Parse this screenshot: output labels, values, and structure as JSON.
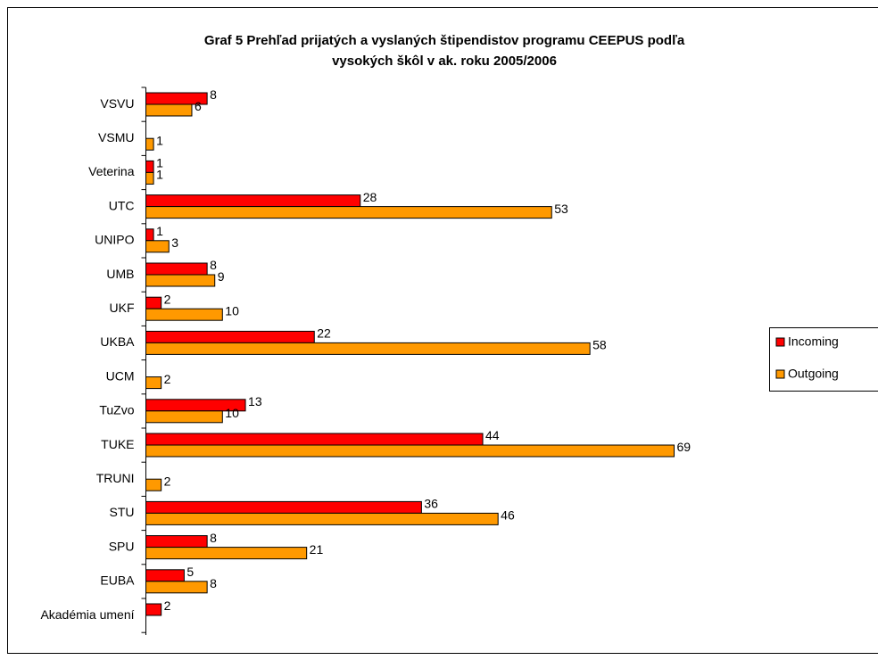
{
  "chart_data": {
    "type": "hbar",
    "title": [
      "Graf 5 Prehľad prijatých a vyslaných štipendistov programu CEEPUS podľa",
      "vysokých škôl v ak. roku 2005/2006"
    ],
    "categories": [
      "VSVU",
      "VSMU",
      "Veterina",
      "UTC",
      "UNIPO",
      "UMB",
      "UKF",
      "UKBA",
      "UCM",
      "TuZvo",
      "TUKE",
      "TRUNI",
      "STU",
      "SPU",
      "EUBA",
      "Akadémia umení"
    ],
    "series": [
      {
        "name": "Incoming",
        "color": "#ff0000",
        "values": [
          8,
          null,
          1,
          28,
          1,
          8,
          2,
          22,
          null,
          13,
          44,
          null,
          36,
          8,
          5,
          2
        ]
      },
      {
        "name": "Outgoing",
        "color": "#ff9900",
        "values": [
          6,
          1,
          1,
          53,
          3,
          9,
          10,
          58,
          2,
          10,
          69,
          2,
          46,
          21,
          8,
          null
        ]
      }
    ],
    "legend": "right"
  }
}
